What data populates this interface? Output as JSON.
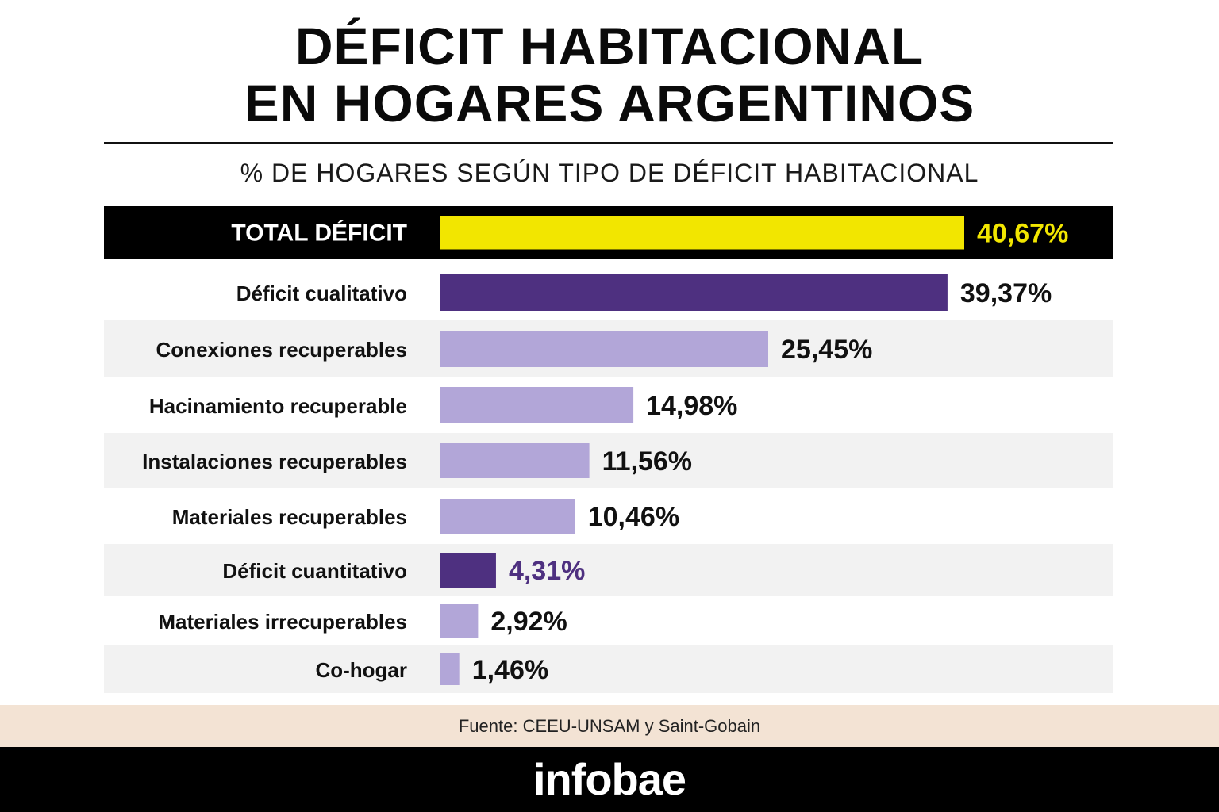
{
  "title_line1": "DÉFICIT HABITACIONAL",
  "title_line2": "EN HOGARES ARGENTINOS",
  "subtitle": "% DE HOGARES SEGÚN TIPO DE DÉFICIT HABITACIONAL",
  "source": "Fuente: CEEU-UNSAM y Saint-Gobain",
  "brand": "infobae",
  "colors": {
    "highlight_bar": "#f2e600",
    "highlight_row": "#000000",
    "dark_bar": "#4e3080",
    "light_bar": "#b2a6d8",
    "alt_row": "#f2f2f2"
  },
  "chart_data": {
    "type": "bar",
    "orientation": "horizontal",
    "xlim": [
      0,
      50
    ],
    "categories": [
      "TOTAL DÉFICIT",
      "Déficit cualitativo",
      "Conexiones recuperables",
      "Hacinamiento recuperable",
      "Instalaciones recuperables",
      "Materiales recuperables",
      "Déficit cuantitativo",
      "Materiales irrecuperables",
      "Co-hogar"
    ],
    "values": [
      40.67,
      39.37,
      25.45,
      14.98,
      11.56,
      10.46,
      4.31,
      2.92,
      1.46
    ],
    "labels": [
      "40,67%",
      "39,37%",
      "25,45%",
      "14,98%",
      "11,56%",
      "10,46%",
      "4,31%",
      "2,92%",
      "1,46%"
    ],
    "styles": [
      "total",
      "dark",
      "light",
      "light",
      "light",
      "light",
      "dark",
      "light",
      "light"
    ],
    "grid": false,
    "legend": "none"
  }
}
